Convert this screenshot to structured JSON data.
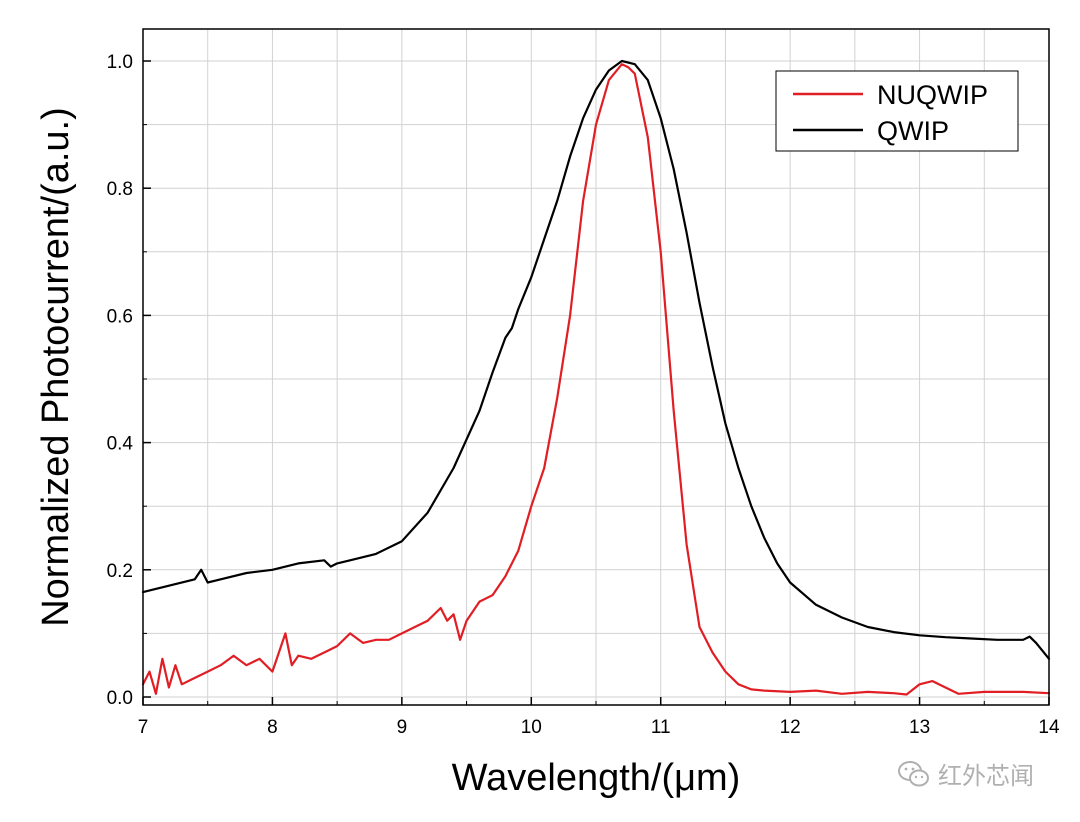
{
  "chart_data": {
    "type": "line",
    "title": "",
    "xlabel": "Wavelength/(μm)",
    "ylabel": "Normalized Photocurrent/(a.u.)",
    "xlim": [
      7,
      14
    ],
    "ylim": [
      0,
      1.05
    ],
    "xticks": [
      7,
      8,
      9,
      10,
      11,
      12,
      13,
      14
    ],
    "yticks": [
      0,
      0.2,
      0.4,
      0.6,
      0.8,
      1.0
    ],
    "xtick_labels": [
      "7",
      "8",
      "9",
      "10",
      "11",
      "12",
      "13",
      "14"
    ],
    "ytick_labels": [
      "0.0",
      "0.2",
      "0.4",
      "0.6",
      "0.8",
      "1.0"
    ],
    "grid": true,
    "legend_position": "top-right",
    "series": [
      {
        "name": "NUQWIP",
        "color": "#e01e24",
        "x": [
          7.0,
          7.05,
          7.1,
          7.15,
          7.2,
          7.25,
          7.3,
          7.4,
          7.5,
          7.6,
          7.7,
          7.8,
          7.9,
          8.0,
          8.05,
          8.1,
          8.15,
          8.2,
          8.3,
          8.4,
          8.5,
          8.6,
          8.7,
          8.8,
          8.9,
          9.0,
          9.1,
          9.2,
          9.3,
          9.35,
          9.4,
          9.45,
          9.5,
          9.6,
          9.7,
          9.8,
          9.9,
          10.0,
          10.1,
          10.2,
          10.3,
          10.4,
          10.5,
          10.6,
          10.7,
          10.75,
          10.8,
          10.9,
          11.0,
          11.1,
          11.2,
          11.3,
          11.4,
          11.5,
          11.6,
          11.7,
          11.8,
          12.0,
          12.2,
          12.4,
          12.6,
          12.8,
          12.9,
          13.0,
          13.1,
          13.2,
          13.3,
          13.5,
          13.8,
          14.0
        ],
        "y": [
          0.02,
          0.04,
          0.005,
          0.06,
          0.015,
          0.05,
          0.02,
          0.03,
          0.04,
          0.05,
          0.065,
          0.05,
          0.06,
          0.04,
          0.07,
          0.1,
          0.05,
          0.065,
          0.06,
          0.07,
          0.08,
          0.1,
          0.085,
          0.09,
          0.09,
          0.1,
          0.11,
          0.12,
          0.14,
          0.12,
          0.13,
          0.09,
          0.12,
          0.15,
          0.16,
          0.19,
          0.23,
          0.3,
          0.36,
          0.47,
          0.6,
          0.78,
          0.9,
          0.97,
          0.995,
          0.99,
          0.98,
          0.88,
          0.7,
          0.45,
          0.24,
          0.11,
          0.07,
          0.04,
          0.02,
          0.012,
          0.01,
          0.008,
          0.01,
          0.005,
          0.008,
          0.006,
          0.004,
          0.02,
          0.025,
          0.015,
          0.005,
          0.008,
          0.008,
          0.006
        ]
      },
      {
        "name": "QWIP",
        "color": "#000000",
        "x": [
          7.0,
          7.2,
          7.4,
          7.45,
          7.5,
          7.6,
          7.8,
          8.0,
          8.2,
          8.4,
          8.45,
          8.5,
          8.6,
          8.8,
          9.0,
          9.2,
          9.4,
          9.6,
          9.7,
          9.8,
          9.85,
          9.9,
          10.0,
          10.1,
          10.2,
          10.3,
          10.4,
          10.5,
          10.6,
          10.7,
          10.8,
          10.9,
          11.0,
          11.1,
          11.2,
          11.3,
          11.4,
          11.5,
          11.6,
          11.7,
          11.8,
          11.9,
          12.0,
          12.2,
          12.4,
          12.6,
          12.8,
          13.0,
          13.2,
          13.4,
          13.6,
          13.8,
          13.85,
          13.9,
          14.0
        ],
        "y": [
          0.165,
          0.175,
          0.185,
          0.2,
          0.18,
          0.185,
          0.195,
          0.2,
          0.21,
          0.215,
          0.205,
          0.21,
          0.215,
          0.225,
          0.245,
          0.29,
          0.36,
          0.45,
          0.51,
          0.565,
          0.58,
          0.61,
          0.66,
          0.72,
          0.78,
          0.85,
          0.91,
          0.955,
          0.985,
          1.0,
          0.995,
          0.97,
          0.91,
          0.83,
          0.73,
          0.62,
          0.52,
          0.43,
          0.36,
          0.3,
          0.25,
          0.21,
          0.18,
          0.145,
          0.125,
          0.11,
          0.102,
          0.097,
          0.094,
          0.092,
          0.09,
          0.09,
          0.095,
          0.085,
          0.06
        ]
      }
    ]
  },
  "watermark": {
    "icon": "wechat-icon",
    "text": "红外芯闻"
  }
}
